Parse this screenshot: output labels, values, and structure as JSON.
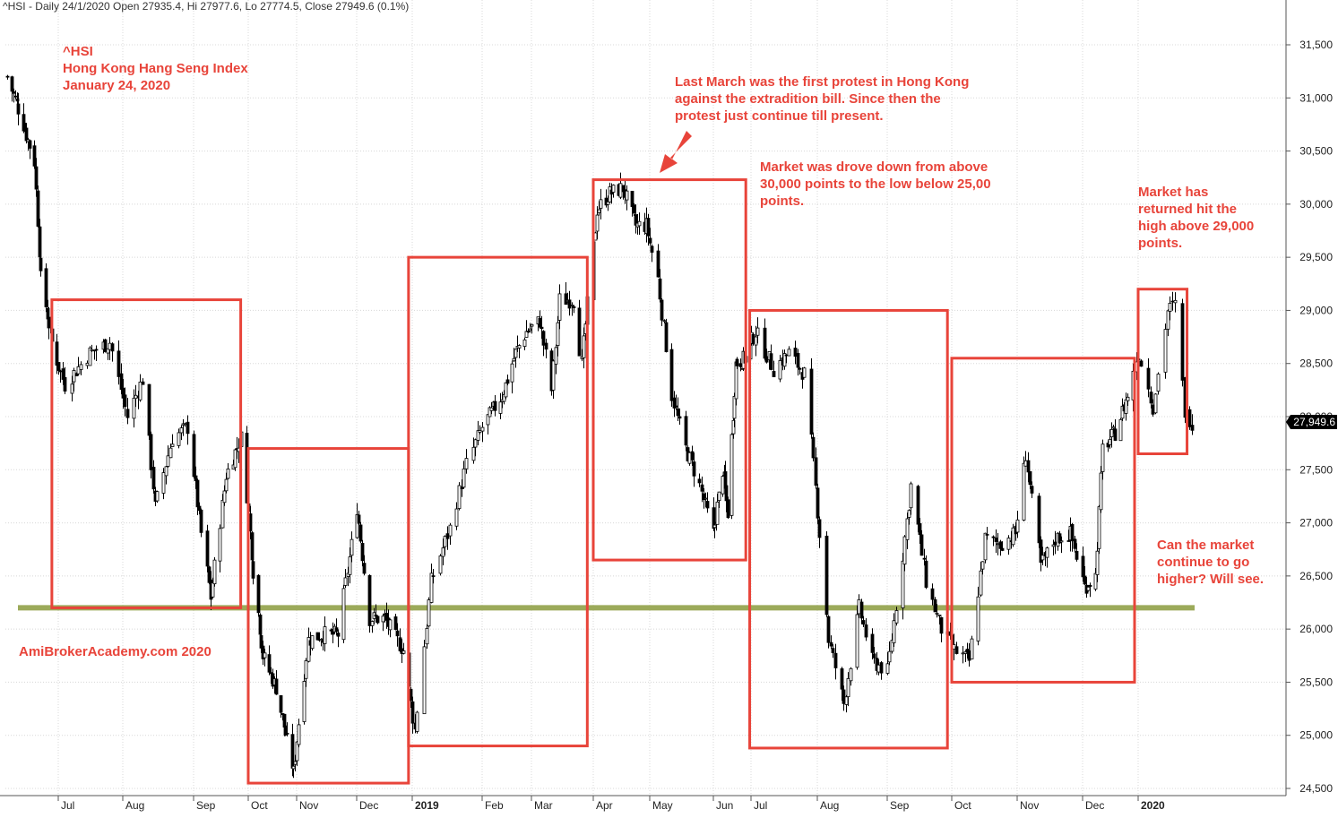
{
  "header": {
    "info_line": "^HSI - Daily 24/1/2020 Open 27935.4, Hi 27977.6, Lo 27774.5, Close 27949.6 (0.1%)"
  },
  "annotations": {
    "title_block": "^HSI\nHong Kong Hang Seng Index\nJanuary 24, 2020",
    "protest_note": "Last March was the first protest in Hong Kong\nagainst the extradition bill. Since then the\nprotest just continue till present.",
    "drop_note": "Market was drove down from above\n30,000 points to the low below 25,00\npoints.",
    "returned_note": "Market has\nreturned hit the\nhigh above 29,000\npoints.",
    "question_note": "Can the market\ncontinue to go\nhigher? Will see.",
    "watermark": "AmiBrokerAcademy.com  2020"
  },
  "colors": {
    "box": "#e8443a",
    "support_line": "#9caa5a",
    "candle": "#000000",
    "grid": "#d8d8d8",
    "last_price_bg": "#000000"
  },
  "chart_data": {
    "type": "candlestick",
    "title": "^HSI - Daily 24/1/2020 Open 27935.4, Hi 27977.6, Lo 27774.5, Close 27949.6 (0.1%)",
    "y_axis_side": "right",
    "ylim": [
      24400,
      31650
    ],
    "y_ticks": [
      24500,
      25000,
      25500,
      26000,
      26500,
      27000,
      27500,
      28000,
      28500,
      29000,
      29500,
      30000,
      30500,
      31000,
      31500
    ],
    "y_tick_labels": [
      "24,500",
      "25,000",
      "25,500",
      "26,000",
      "26,500",
      "27,000",
      "27,500",
      "28,000",
      "28,500",
      "29,000",
      "29,500",
      "30,000",
      "30,500",
      "31,000",
      "31,500"
    ],
    "x_labels": [
      "Jul",
      "Aug",
      "Sep",
      "Oct",
      "Nov",
      "Dec",
      "2019",
      "Feb",
      "Mar",
      "Apr",
      "May",
      "Jun",
      "Jul",
      "Aug",
      "Sep",
      "Oct",
      "Nov",
      "Dec",
      "2020"
    ],
    "x_label_dates": [
      "2018-07-03",
      "2018-08-01",
      "2018-09-03",
      "2018-10-02",
      "2018-11-01",
      "2018-12-03",
      "2019-01-02",
      "2019-02-01",
      "2019-03-01",
      "2019-04-01",
      "2019-05-02",
      "2019-06-03",
      "2019-07-02",
      "2019-08-01",
      "2019-09-02",
      "2019-10-02",
      "2019-11-01",
      "2019-12-02",
      "2020-01-02"
    ],
    "x_range": [
      "2018-06-01",
      "2020-01-24"
    ],
    "last_price": 27949.6,
    "last_price_label": "27,949.6",
    "close_path": [
      {
        "date": "2018-06-01",
        "close": 31200
      },
      {
        "date": "2018-06-08",
        "close": 30900
      },
      {
        "date": "2018-06-18",
        "close": 30400
      },
      {
        "date": "2018-06-22",
        "close": 29300
      },
      {
        "date": "2018-06-29",
        "close": 28700
      },
      {
        "date": "2018-07-06",
        "close": 28300
      },
      {
        "date": "2018-07-17",
        "close": 28600
      },
      {
        "date": "2018-07-26",
        "close": 28700
      },
      {
        "date": "2018-08-03",
        "close": 28000
      },
      {
        "date": "2018-08-10",
        "close": 28350
      },
      {
        "date": "2018-08-16",
        "close": 27150
      },
      {
        "date": "2018-08-24",
        "close": 27800
      },
      {
        "date": "2018-08-31",
        "close": 27900
      },
      {
        "date": "2018-09-07",
        "close": 26900
      },
      {
        "date": "2018-09-12",
        "close": 26300
      },
      {
        "date": "2018-09-20",
        "close": 27450
      },
      {
        "date": "2018-09-28",
        "close": 27800
      },
      {
        "date": "2018-10-05",
        "close": 26550
      },
      {
        "date": "2018-10-11",
        "close": 25750
      },
      {
        "date": "2018-10-19",
        "close": 25450
      },
      {
        "date": "2018-10-30",
        "close": 24650
      },
      {
        "date": "2018-11-07",
        "close": 25900
      },
      {
        "date": "2018-11-15",
        "close": 25950
      },
      {
        "date": "2018-11-23",
        "close": 25950
      },
      {
        "date": "2018-12-03",
        "close": 27150
      },
      {
        "date": "2018-12-10",
        "close": 26100
      },
      {
        "date": "2018-12-18",
        "close": 26100
      },
      {
        "date": "2018-12-28",
        "close": 25800
      },
      {
        "date": "2019-01-03",
        "close": 25050
      },
      {
        "date": "2019-01-10",
        "close": 26450
      },
      {
        "date": "2019-01-18",
        "close": 26950
      },
      {
        "date": "2019-01-25",
        "close": 27550
      },
      {
        "date": "2019-02-01",
        "close": 27900
      },
      {
        "date": "2019-02-12",
        "close": 28200
      },
      {
        "date": "2019-02-20",
        "close": 28600
      },
      {
        "date": "2019-02-26",
        "close": 28800
      },
      {
        "date": "2019-03-05",
        "close": 28900
      },
      {
        "date": "2019-03-11",
        "close": 28250
      },
      {
        "date": "2019-03-15",
        "close": 29100
      },
      {
        "date": "2019-03-22",
        "close": 29100
      },
      {
        "date": "2019-03-26",
        "close": 28500
      },
      {
        "date": "2019-03-29",
        "close": 29050
      },
      {
        "date": "2019-04-03",
        "close": 29950
      },
      {
        "date": "2019-04-10",
        "close": 30100
      },
      {
        "date": "2019-04-17",
        "close": 30150
      },
      {
        "date": "2019-04-24",
        "close": 29800
      },
      {
        "date": "2019-04-30",
        "close": 29800
      },
      {
        "date": "2019-05-06",
        "close": 29300
      },
      {
        "date": "2019-05-13",
        "close": 28200
      },
      {
        "date": "2019-05-20",
        "close": 27700
      },
      {
        "date": "2019-05-27",
        "close": 27350
      },
      {
        "date": "2019-06-03",
        "close": 26900
      },
      {
        "date": "2019-06-10",
        "close": 27500
      },
      {
        "date": "2019-06-14",
        "close": 27100
      },
      {
        "date": "2019-06-20",
        "close": 28500
      },
      {
        "date": "2019-06-28",
        "close": 28550
      },
      {
        "date": "2019-07-04",
        "close": 28800
      },
      {
        "date": "2019-07-12",
        "close": 28450
      },
      {
        "date": "2019-07-19",
        "close": 28600
      },
      {
        "date": "2019-07-26",
        "close": 28400
      },
      {
        "date": "2019-08-02",
        "close": 26900
      },
      {
        "date": "2019-08-06",
        "close": 25900
      },
      {
        "date": "2019-08-13",
        "close": 25300
      },
      {
        "date": "2019-08-20",
        "close": 26200
      },
      {
        "date": "2019-08-26",
        "close": 25700
      },
      {
        "date": "2019-09-02",
        "close": 25600
      },
      {
        "date": "2019-09-09",
        "close": 26700
      },
      {
        "date": "2019-09-13",
        "close": 27350
      },
      {
        "date": "2019-09-20",
        "close": 26450
      },
      {
        "date": "2019-09-27",
        "close": 26000
      },
      {
        "date": "2019-10-03",
        "close": 25800
      },
      {
        "date": "2019-10-10",
        "close": 25700
      },
      {
        "date": "2019-10-17",
        "close": 26850
      },
      {
        "date": "2019-10-24",
        "close": 26800
      },
      {
        "date": "2019-10-31",
        "close": 26900
      },
      {
        "date": "2019-11-05",
        "close": 27650
      },
      {
        "date": "2019-11-12",
        "close": 26600
      },
      {
        "date": "2019-11-19",
        "close": 26850
      },
      {
        "date": "2019-11-26",
        "close": 26900
      },
      {
        "date": "2019-12-03",
        "close": 26400
      },
      {
        "date": "2019-12-09",
        "close": 26500
      },
      {
        "date": "2019-12-13",
        "close": 27700
      },
      {
        "date": "2019-12-20",
        "close": 27850
      },
      {
        "date": "2019-12-27",
        "close": 28200
      },
      {
        "date": "2020-01-02",
        "close": 28600
      },
      {
        "date": "2020-01-08",
        "close": 28100
      },
      {
        "date": "2020-01-14",
        "close": 29000
      },
      {
        "date": "2020-01-17",
        "close": 29050
      },
      {
        "date": "2020-01-21",
        "close": 28050
      },
      {
        "date": "2020-01-24",
        "close": 27949.6
      }
    ],
    "boxes": [
      {
        "start": "2018-06-29",
        "end": "2018-09-28",
        "low": 26200,
        "high": 29100
      },
      {
        "start": "2018-10-02",
        "end": "2018-12-31",
        "low": 24550,
        "high": 27700
      },
      {
        "start": "2018-12-31",
        "end": "2019-03-29",
        "low": 24900,
        "high": 29500
      },
      {
        "start": "2019-04-01",
        "end": "2019-06-28",
        "low": 26650,
        "high": 30230
      },
      {
        "start": "2019-07-01",
        "end": "2019-09-30",
        "low": 24880,
        "high": 29000
      },
      {
        "start": "2019-10-02",
        "end": "2019-12-31",
        "low": 25500,
        "high": 28550
      },
      {
        "start": "2020-01-02",
        "end": "2020-01-22",
        "low": 27650,
        "high": 29200
      }
    ],
    "support_level": 26200,
    "support_range": [
      "2018-06-01",
      "2020-01-24"
    ]
  }
}
